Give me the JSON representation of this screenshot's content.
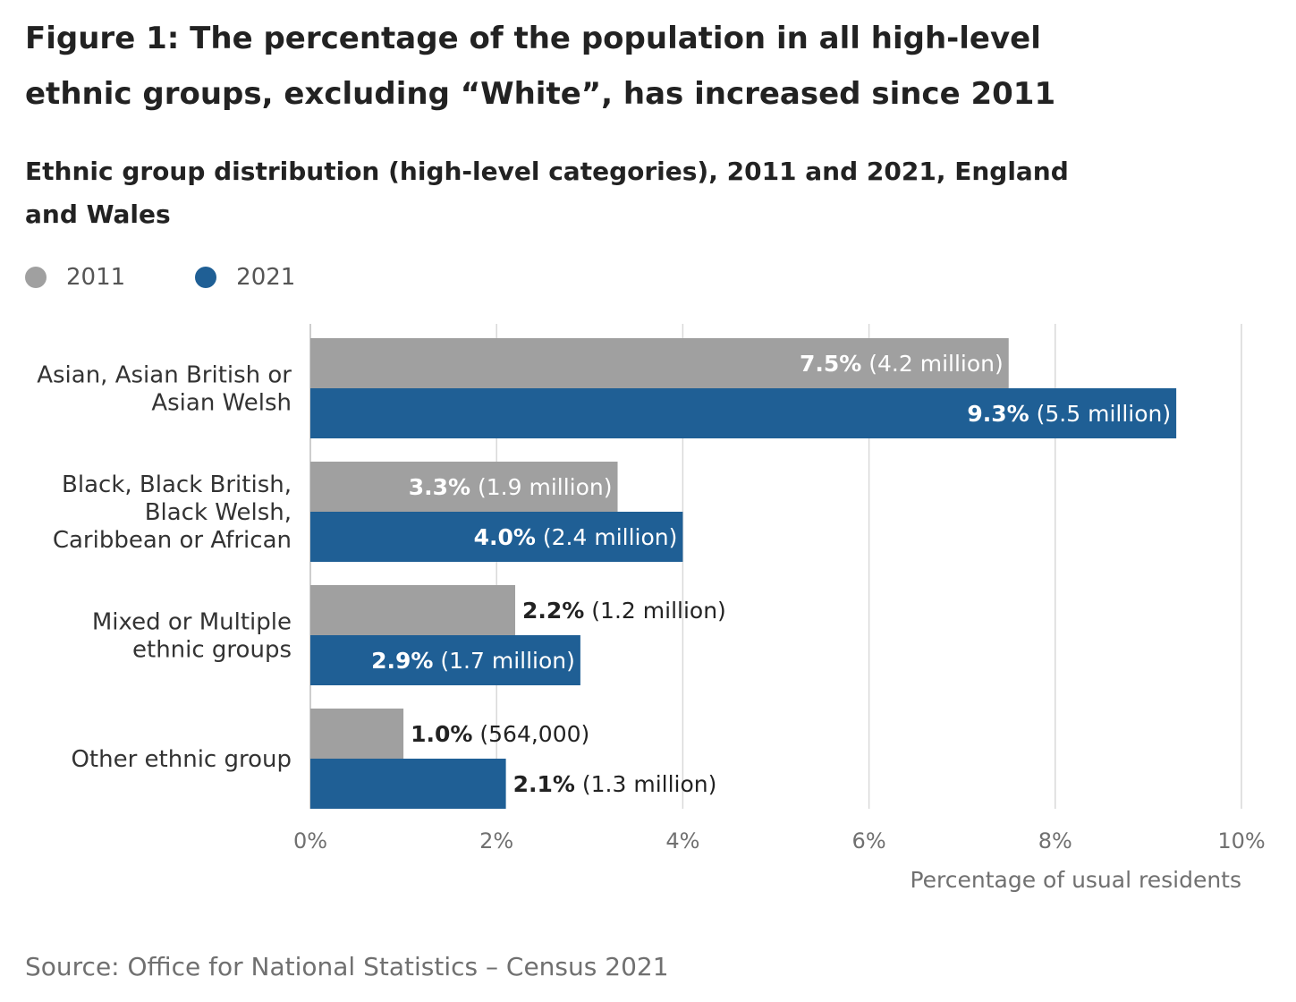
{
  "title": "Figure 1: The percentage of the population in all high-level ethnic groups, excluding “White”, has increased since 2011",
  "source": "Source: Office for National Statistics – Census 2021",
  "colors": {
    "2011": "#a0a0a0",
    "2021": "#1f5f95"
  },
  "chart_data": {
    "type": "bar",
    "orientation": "horizontal",
    "title": "Ethnic group distribution (high-level categories), 2011 and 2021, England and Wales",
    "xlabel": "Percentage of usual residents",
    "ylabel": "",
    "xlim": [
      0,
      10
    ],
    "xticks": [
      "0%",
      "2%",
      "4%",
      "6%",
      "8%",
      "10%"
    ],
    "grid": true,
    "legend": "top-left",
    "categories": [
      [
        "Asian, Asian British or",
        "Asian Welsh"
      ],
      [
        "Black, Black British,",
        "Black Welsh,",
        "Caribbean or African"
      ],
      [
        "Mixed or Multiple",
        "ethnic groups"
      ],
      [
        "Other ethnic group"
      ]
    ],
    "series": [
      {
        "name": "2011",
        "values": [
          7.5,
          3.3,
          2.2,
          1.0
        ],
        "labels": [
          "7.5%",
          "3.3%",
          "2.2%",
          "1.0%"
        ],
        "counts": [
          "(4.2 million)",
          "(1.9 million)",
          "(1.2 million)",
          "(564,000)"
        ]
      },
      {
        "name": "2021",
        "values": [
          9.3,
          4.0,
          2.9,
          2.1
        ],
        "labels": [
          "9.3%",
          "4.0%",
          "2.9%",
          "2.1%"
        ],
        "counts": [
          "(5.5 million)",
          "(2.4 million)",
          "(1.7 million)",
          "(1.3 million)"
        ]
      }
    ]
  }
}
